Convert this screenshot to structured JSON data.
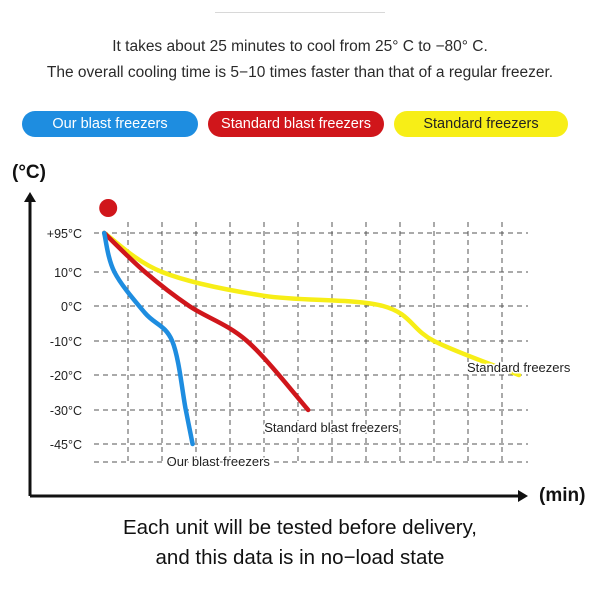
{
  "intro": {
    "line1": "It takes about 25 minutes to cool from 25°  C to −80°  C.",
    "line2": "The overall cooling time is 5−10 times faster than that of a regular freezer."
  },
  "legend": {
    "blue": "Our blast freezers",
    "red": "Standard blast freezers",
    "yellow": "Standard freezers"
  },
  "colors": {
    "blue": "#1e8de0",
    "red": "#d0161b",
    "yellow": "#f7ee17"
  },
  "footer": {
    "line1": "Each unit will be tested before delivery,",
    "line2": "and this data is in no−load state"
  },
  "chart_data": {
    "type": "line",
    "title": "",
    "ylabel": "(°C)",
    "xlabel": "(min)",
    "y_ticks": [
      "+95°C",
      "10°C",
      "0°C",
      "-10°C",
      "-20°C",
      "-30°C",
      "-45°C"
    ],
    "grid": true,
    "series": [
      {
        "name": "Our blast freezers",
        "color": "#1e8de0",
        "points": [
          [
            0.3,
            95
          ],
          [
            0.6,
            10
          ],
          [
            1.5,
            -2
          ],
          [
            2.3,
            -10
          ],
          [
            2.7,
            -30
          ],
          [
            2.9,
            -45
          ]
        ]
      },
      {
        "name": "Standard blast freezers",
        "color": "#d0161b",
        "points": [
          [
            0.3,
            95
          ],
          [
            1.5,
            10
          ],
          [
            2.8,
            0
          ],
          [
            4.5,
            -10
          ],
          [
            6.3,
            -30
          ]
        ]
      },
      {
        "name": "Standard freezers",
        "color": "#f7ee17",
        "points": [
          [
            0.3,
            95
          ],
          [
            2.0,
            10
          ],
          [
            5.0,
            3
          ],
          [
            8.5,
            0
          ],
          [
            10.0,
            -10
          ],
          [
            12.5,
            -20
          ]
        ]
      }
    ]
  }
}
